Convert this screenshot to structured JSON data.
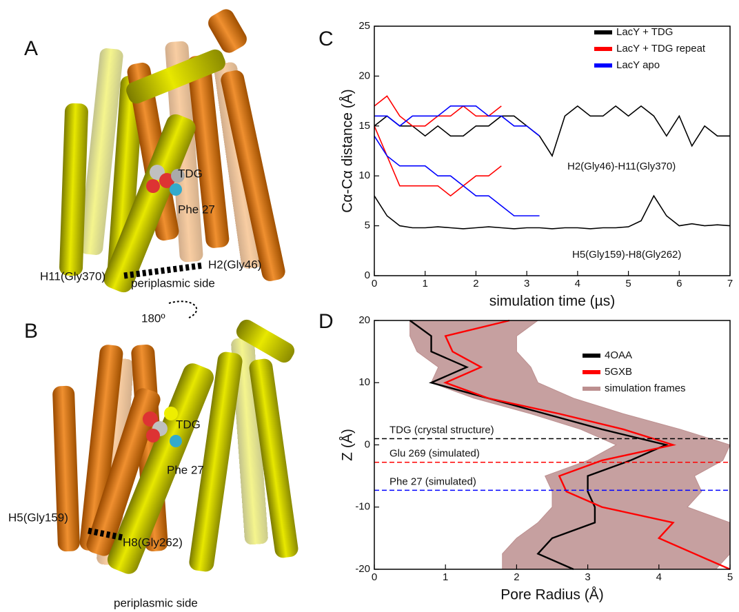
{
  "panels": {
    "A": {
      "letter": "A",
      "labels": [
        "TDG",
        "Phe 27",
        "H11(Gly370)",
        "H2(Gly46)",
        "periplasmic side",
        "180º"
      ]
    },
    "B": {
      "letter": "B",
      "labels": [
        "TDG",
        "Phe 27",
        "H5(Gly159)",
        "H8(Gly262)",
        "periplasmic side"
      ]
    }
  },
  "chart_data": [
    {
      "type": "line",
      "label": "C",
      "xlabel": "simulation time (µs)",
      "ylabel": "Cα-Cα distance (Å)",
      "xlim": [
        0,
        7
      ],
      "xticks": [
        0,
        1,
        2,
        3,
        4,
        5,
        6,
        7
      ],
      "ylim": [
        0,
        25
      ],
      "yticks": [
        0,
        5,
        10,
        15,
        20,
        25
      ],
      "legend": "upper right",
      "annotations": [
        "H2(Gly46)-H11(Gly370)",
        "H5(Gly159)-H8(Gly262)"
      ],
      "series": [
        {
          "name": "LacY + TDG",
          "color": "#000000",
          "x": [
            0,
            0.25,
            0.5,
            0.75,
            1,
            1.25,
            1.5,
            1.75,
            2,
            2.25,
            2.5,
            2.75,
            3,
            3.25,
            3.5,
            3.75,
            4,
            4.25,
            4.5,
            4.75,
            5,
            5.25,
            5.5,
            5.75,
            6,
            6.25,
            6.5,
            6.75,
            7
          ],
          "values": [
            15,
            16,
            15,
            15,
            14,
            15,
            14,
            14,
            15,
            15,
            16,
            16,
            15,
            14,
            12,
            16,
            17,
            16,
            16,
            17,
            16,
            17,
            16,
            14,
            16,
            13,
            15,
            14,
            14
          ]
        },
        {
          "color": "#000000",
          "x": [
            0,
            0.25,
            0.5,
            0.75,
            1,
            1.25,
            1.5,
            1.75,
            2,
            2.25,
            2.5,
            2.75,
            3,
            3.25,
            3.5,
            3.75,
            4,
            4.25,
            4.5,
            4.75,
            5,
            5.25,
            5.5,
            5.75,
            6,
            6.25,
            6.5,
            6.75,
            7
          ],
          "values": [
            8,
            6,
            5,
            4.8,
            4.8,
            4.9,
            4.8,
            4.7,
            4.8,
            4.9,
            4.8,
            4.7,
            4.8,
            4.8,
            4.7,
            4.8,
            4.8,
            4.7,
            4.8,
            4.8,
            4.9,
            5.5,
            8,
            6,
            5,
            5.2,
            5,
            5.1,
            5
          ]
        },
        {
          "name": "LacY + TDG repeat",
          "color": "#ff0000",
          "x": [
            0,
            0.25,
            0.5,
            0.75,
            1,
            1.25,
            1.5,
            1.75,
            2,
            2.25,
            2.5
          ],
          "values": [
            17,
            18,
            16,
            15,
            15,
            16,
            16,
            17,
            16,
            16,
            17
          ]
        },
        {
          "color": "#ff0000",
          "x": [
            0,
            0.25,
            0.5,
            0.75,
            1,
            1.25,
            1.5,
            1.75,
            2,
            2.25,
            2.5
          ],
          "values": [
            15,
            12,
            9,
            9,
            9,
            9,
            8,
            9,
            10,
            10,
            11
          ]
        },
        {
          "name": "LacY apo",
          "color": "#0000ff",
          "x": [
            0,
            0.25,
            0.5,
            0.75,
            1,
            1.25,
            1.5,
            1.75,
            2,
            2.25,
            2.5,
            2.75,
            3,
            3.25
          ],
          "values": [
            16,
            16,
            15,
            16,
            16,
            16,
            17,
            17,
            17,
            16,
            16,
            15,
            15,
            14
          ]
        },
        {
          "color": "#0000ff",
          "x": [
            0,
            0.25,
            0.5,
            0.75,
            1,
            1.25,
            1.5,
            1.75,
            2,
            2.25,
            2.5,
            2.75,
            3,
            3.25
          ],
          "values": [
            14,
            12,
            11,
            11,
            11,
            10,
            10,
            9,
            8,
            8,
            7,
            6,
            6,
            6
          ]
        }
      ]
    },
    {
      "type": "line",
      "label": "D",
      "xlabel": "Pore Radius (Å)",
      "ylabel": "Z (Å)",
      "xlim": [
        0,
        5
      ],
      "xticks": [
        0,
        1,
        2,
        3,
        4,
        5
      ],
      "ylim": [
        -20,
        20
      ],
      "yticks": [
        -20,
        -10,
        0,
        10,
        20
      ],
      "legend": "upper right",
      "y": [
        20,
        17.5,
        15,
        12.5,
        10,
        7.5,
        5,
        2.5,
        0,
        -2.5,
        -5,
        -7.5,
        -10,
        -12.5,
        -15,
        -17.5,
        -20
      ],
      "series": [
        {
          "name": "4OAA",
          "color": "#000000",
          "values": [
            0.5,
            0.8,
            0.8,
            1.3,
            0.8,
            1.6,
            2.4,
            3.2,
            4.1,
            3.6,
            3.0,
            3.0,
            3.1,
            3.1,
            2.5,
            2.3,
            2.8
          ]
        },
        {
          "name": "5GXB",
          "color": "#ff0000",
          "values": [
            1.9,
            1.0,
            1.1,
            1.5,
            1.0,
            1.6,
            2.6,
            3.5,
            4.2,
            3.2,
            2.6,
            2.7,
            3.2,
            4.2,
            4.0,
            4.5,
            5.0
          ]
        },
        {
          "name": "simulation frames",
          "color": "#bc8f8f",
          "lower": [
            0.5,
            0.5,
            0.6,
            0.9,
            0.8,
            1.4,
            2.2,
            2.9,
            3.4,
            3.0,
            2.4,
            2.5,
            2.5,
            2.3,
            2.0,
            1.8,
            1.8
          ],
          "upper": [
            2.3,
            2.0,
            2.0,
            2.2,
            2.3,
            2.8,
            3.5,
            4.3,
            5.0,
            4.9,
            4.5,
            4.6,
            4.4,
            5.0,
            5.0,
            5.0,
            4.8
          ]
        }
      ],
      "hlines": [
        {
          "value": 1,
          "label": "TDG (crystal structure)",
          "color": "#000000"
        },
        {
          "value": -2.8,
          "label": "Glu 269 (simulated)",
          "color": "#ff0000"
        },
        {
          "value": -7.3,
          "label": "Phe 27 (simulated)",
          "color": "#0000ff"
        }
      ]
    }
  ]
}
